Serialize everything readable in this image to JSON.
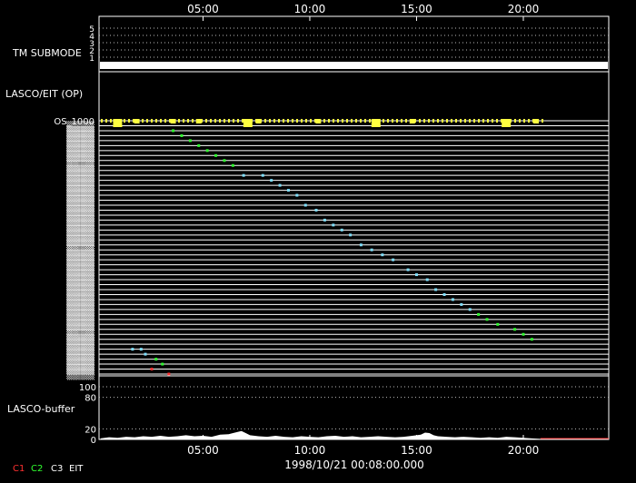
{
  "chart_data": {
    "type": "scatter",
    "timestamp": "1998/10/21 00:08:00.000",
    "x_axis": {
      "unit": "hours",
      "range": [
        0.13,
        24.0
      ],
      "ticks": [
        "05:00",
        "10:00",
        "15:00",
        "20:00"
      ],
      "tick_hours": [
        5,
        10,
        15,
        20
      ]
    },
    "panels": {
      "tm_submode": {
        "label": "TM SUBMODE",
        "ticks": [
          "5",
          "4",
          "3",
          "2",
          "1"
        ],
        "active_level": 1
      },
      "lasco_eit": {
        "label": "LASCO/EIT (OP)",
        "top_row_label": "OS_1000",
        "row_count": 52,
        "color_key": {
          "C1": "#ff3030",
          "C2": "#30ff30",
          "C3": "#ffffff",
          "EIT": "#7fe0ff"
        },
        "status_markers": [
          {
            "h": 1.0,
            "kind": "big"
          },
          {
            "h": 1.9,
            "kind": "small"
          },
          {
            "h": 3.6,
            "kind": "small"
          },
          {
            "h": 4.8,
            "kind": "small"
          },
          {
            "h": 7.1,
            "kind": "big"
          },
          {
            "h": 7.6,
            "kind": "small"
          },
          {
            "h": 10.4,
            "kind": "small"
          },
          {
            "h": 13.1,
            "kind": "big"
          },
          {
            "h": 14.8,
            "kind": "small"
          },
          {
            "h": 19.2,
            "kind": "big"
          },
          {
            "h": 20.6,
            "kind": "small"
          }
        ],
        "observations": [
          {
            "h": 3.6,
            "row": 2,
            "c": "C2"
          },
          {
            "h": 4.0,
            "row": 3,
            "c": "C2"
          },
          {
            "h": 4.4,
            "row": 4,
            "c": "C2"
          },
          {
            "h": 4.8,
            "row": 5,
            "c": "C2"
          },
          {
            "h": 5.2,
            "row": 6,
            "c": "C2"
          },
          {
            "h": 5.6,
            "row": 7,
            "c": "C2"
          },
          {
            "h": 6.0,
            "row": 8,
            "c": "C2"
          },
          {
            "h": 6.4,
            "row": 9,
            "c": "C2"
          },
          {
            "h": 6.9,
            "row": 11,
            "c": "EIT"
          },
          {
            "h": 7.8,
            "row": 11,
            "c": "EIT"
          },
          {
            "h": 8.2,
            "row": 12,
            "c": "EIT"
          },
          {
            "h": 8.6,
            "row": 13,
            "c": "EIT"
          },
          {
            "h": 9.0,
            "row": 14,
            "c": "EIT"
          },
          {
            "h": 9.4,
            "row": 15,
            "c": "EIT"
          },
          {
            "h": 9.8,
            "row": 17,
            "c": "EIT"
          },
          {
            "h": 10.3,
            "row": 18,
            "c": "EIT"
          },
          {
            "h": 10.7,
            "row": 20,
            "c": "EIT"
          },
          {
            "h": 11.1,
            "row": 21,
            "c": "EIT"
          },
          {
            "h": 11.5,
            "row": 22,
            "c": "EIT"
          },
          {
            "h": 11.9,
            "row": 23,
            "c": "EIT"
          },
          {
            "h": 12.4,
            "row": 25,
            "c": "EIT"
          },
          {
            "h": 12.9,
            "row": 26,
            "c": "EIT"
          },
          {
            "h": 13.4,
            "row": 27,
            "c": "EIT"
          },
          {
            "h": 13.9,
            "row": 28,
            "c": "EIT"
          },
          {
            "h": 14.6,
            "row": 30,
            "c": "EIT"
          },
          {
            "h": 15.0,
            "row": 31,
            "c": "EIT"
          },
          {
            "h": 15.5,
            "row": 32,
            "c": "EIT"
          },
          {
            "h": 15.9,
            "row": 34,
            "c": "EIT"
          },
          {
            "h": 16.3,
            "row": 35,
            "c": "EIT"
          },
          {
            "h": 16.7,
            "row": 36,
            "c": "EIT"
          },
          {
            "h": 17.1,
            "row": 37,
            "c": "EIT"
          },
          {
            "h": 17.5,
            "row": 38,
            "c": "EIT"
          },
          {
            "h": 17.9,
            "row": 39,
            "c": "C2"
          },
          {
            "h": 18.3,
            "row": 40,
            "c": "C2"
          },
          {
            "h": 18.8,
            "row": 41,
            "c": "C2"
          },
          {
            "h": 19.6,
            "row": 42,
            "c": "C2"
          },
          {
            "h": 20.0,
            "row": 43,
            "c": "C2"
          },
          {
            "h": 20.4,
            "row": 44,
            "c": "C2"
          },
          {
            "h": 1.7,
            "row": 46,
            "c": "EIT"
          },
          {
            "h": 2.1,
            "row": 46,
            "c": "EIT"
          },
          {
            "h": 2.3,
            "row": 47,
            "c": "EIT"
          },
          {
            "h": 2.8,
            "row": 48,
            "c": "C2"
          },
          {
            "h": 3.1,
            "row": 49,
            "c": "C2"
          },
          {
            "h": 2.6,
            "row": 50,
            "c": "C1"
          },
          {
            "h": 3.4,
            "row": 51,
            "c": "C1"
          }
        ]
      },
      "lasco_buffer": {
        "label": "LASCO-buffer",
        "y_ticks": [
          "100",
          "80",
          "20",
          "0"
        ],
        "y_tick_values": [
          100,
          80,
          20,
          0
        ],
        "ylim": [
          0,
          100
        ],
        "line_color": "#ff3030",
        "series_hours": [
          0.2,
          0.6,
          1.0,
          1.4,
          1.8,
          2.2,
          2.6,
          3.0,
          3.4,
          3.8,
          4.2,
          4.6,
          5.0,
          5.4,
          5.8,
          6.2,
          6.6,
          6.8,
          7.0,
          7.2,
          7.6,
          8.0,
          8.4,
          8.8,
          9.2,
          9.6,
          10.0,
          10.4,
          10.8,
          11.2,
          11.6,
          12.0,
          12.4,
          12.8,
          13.2,
          13.6,
          14.0,
          14.4,
          14.8,
          15.2,
          15.4,
          15.6,
          15.8,
          16.0,
          16.4,
          16.8,
          17.2,
          17.6,
          18.0,
          18.4,
          18.8,
          19.2,
          19.6,
          20.0,
          20.4,
          20.8
        ],
        "series_values": [
          2,
          4,
          3,
          5,
          4,
          6,
          5,
          7,
          5,
          6,
          8,
          6,
          7,
          5,
          9,
          10,
          14,
          16,
          12,
          8,
          6,
          5,
          7,
          5,
          4,
          6,
          5,
          4,
          6,
          7,
          5,
          6,
          4,
          5,
          6,
          5,
          4,
          5,
          7,
          9,
          13,
          12,
          8,
          6,
          5,
          4,
          5,
          4,
          3,
          4,
          3,
          5,
          4,
          3,
          2,
          1
        ]
      }
    }
  },
  "legend": {
    "c1": {
      "label": "C1",
      "color": "#ff3030"
    },
    "c2": {
      "label": "C2",
      "color": "#30ff30"
    },
    "c3": {
      "label": "C3",
      "color": "#ffffff"
    },
    "eit": {
      "label": "EIT",
      "color": "#7fe0ff"
    }
  }
}
